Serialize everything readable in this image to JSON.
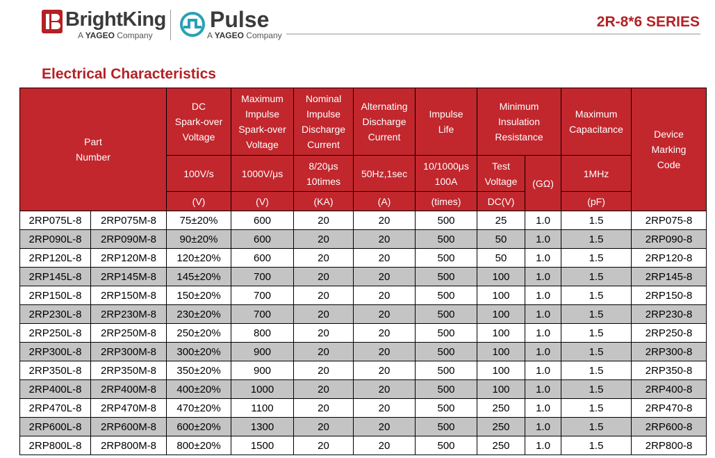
{
  "header": {
    "brightking": {
      "name": "BrightKing",
      "sub_prefix": "A",
      "sub_brand": "YAGEO",
      "sub_suffix": "Company"
    },
    "pulse": {
      "name": "Pulse",
      "sub_prefix": "A",
      "sub_brand": "YAGEO",
      "sub_suffix": "Company"
    },
    "series": "2R-8*6 SERIES"
  },
  "section_title": "Electrical Characteristics",
  "colors": {
    "brand_red": "#b52025",
    "header_red": "#c1272d",
    "row_shade": "#c4c4c4"
  },
  "table": {
    "headers": {
      "part_number": [
        "Part",
        "Number"
      ],
      "dc_sparkover": [
        "DC",
        "Spark-over",
        "Voltage"
      ],
      "max_impulse": [
        "Maximum",
        "Impulse",
        "Spark-over",
        "Voltage"
      ],
      "nominal_discharge": [
        "Nominal",
        "Impulse",
        "Discharge",
        "Current"
      ],
      "alt_discharge": [
        "Alternating",
        "Discharge",
        "Current"
      ],
      "impulse_life": [
        "Impulse",
        "Life"
      ],
      "min_insulation": [
        "Minimum",
        "Insulation",
        "Resistance"
      ],
      "max_capacitance": [
        "Maximum",
        "Capacitance"
      ],
      "marking": [
        "Device",
        "Marking",
        "Code"
      ]
    },
    "conditions": {
      "dc_sparkover": "100V/s",
      "max_impulse": "1000V/μs",
      "nominal_discharge": [
        "8/20μs",
        "10times"
      ],
      "alt_discharge": "50Hz,1sec",
      "impulse_life": [
        "10/1000μs",
        "100A"
      ],
      "test_voltage": [
        "Test",
        "Voltage"
      ],
      "gohm": "(GΩ)",
      "max_capacitance": "1MHz"
    },
    "units": {
      "dc_sparkover": "(V)",
      "max_impulse": "(V)",
      "nominal_discharge": "(KA)",
      "alt_discharge": "(A)",
      "impulse_life": "(times)",
      "test_voltage": "DC(V)",
      "max_capacitance": "(pF)"
    },
    "rows": [
      {
        "l": "2RP075L-8",
        "m": "2RP075M-8",
        "dc": "75±20%",
        "imp": "600",
        "nom": "20",
        "alt": "20",
        "life": "500",
        "tv": "25",
        "res": "1.0",
        "cap": "1.5",
        "code": "2RP075-8"
      },
      {
        "l": "2RP090L-8",
        "m": "2RP090M-8",
        "dc": "90±20%",
        "imp": "600",
        "nom": "20",
        "alt": "20",
        "life": "500",
        "tv": "50",
        "res": "1.0",
        "cap": "1.5",
        "code": "2RP090-8"
      },
      {
        "l": "2RP120L-8",
        "m": "2RP120M-8",
        "dc": "120±20%",
        "imp": "600",
        "nom": "20",
        "alt": "20",
        "life": "500",
        "tv": "50",
        "res": "1.0",
        "cap": "1.5",
        "code": "2RP120-8"
      },
      {
        "l": "2RP145L-8",
        "m": "2RP145M-8",
        "dc": "145±20%",
        "imp": "700",
        "nom": "20",
        "alt": "20",
        "life": "500",
        "tv": "100",
        "res": "1.0",
        "cap": "1.5",
        "code": "2RP145-8"
      },
      {
        "l": "2RP150L-8",
        "m": "2RP150M-8",
        "dc": "150±20%",
        "imp": "700",
        "nom": "20",
        "alt": "20",
        "life": "500",
        "tv": "100",
        "res": "1.0",
        "cap": "1.5",
        "code": "2RP150-8"
      },
      {
        "l": "2RP230L-8",
        "m": "2RP230M-8",
        "dc": "230±20%",
        "imp": "700",
        "nom": "20",
        "alt": "20",
        "life": "500",
        "tv": "100",
        "res": "1.0",
        "cap": "1.5",
        "code": "2RP230-8"
      },
      {
        "l": "2RP250L-8",
        "m": "2RP250M-8",
        "dc": "250±20%",
        "imp": "800",
        "nom": "20",
        "alt": "20",
        "life": "500",
        "tv": "100",
        "res": "1.0",
        "cap": "1.5",
        "code": "2RP250-8"
      },
      {
        "l": "2RP300L-8",
        "m": "2RP300M-8",
        "dc": "300±20%",
        "imp": "900",
        "nom": "20",
        "alt": "20",
        "life": "500",
        "tv": "100",
        "res": "1.0",
        "cap": "1.5",
        "code": "2RP300-8"
      },
      {
        "l": "2RP350L-8",
        "m": "2RP350M-8",
        "dc": "350±20%",
        "imp": "900",
        "nom": "20",
        "alt": "20",
        "life": "500",
        "tv": "100",
        "res": "1.0",
        "cap": "1.5",
        "code": "2RP350-8"
      },
      {
        "l": "2RP400L-8",
        "m": "2RP400M-8",
        "dc": "400±20%",
        "imp": "1000",
        "nom": "20",
        "alt": "20",
        "life": "500",
        "tv": "100",
        "res": "1.0",
        "cap": "1.5",
        "code": "2RP400-8"
      },
      {
        "l": "2RP470L-8",
        "m": "2RP470M-8",
        "dc": "470±20%",
        "imp": "1100",
        "nom": "20",
        "alt": "20",
        "life": "500",
        "tv": "250",
        "res": "1.0",
        "cap": "1.5",
        "code": "2RP470-8"
      },
      {
        "l": "2RP600L-8",
        "m": "2RP600M-8",
        "dc": "600±20%",
        "imp": "1300",
        "nom": "20",
        "alt": "20",
        "life": "500",
        "tv": "250",
        "res": "1.0",
        "cap": "1.5",
        "code": "2RP600-8"
      },
      {
        "l": "2RP800L-8",
        "m": "2RP800M-8",
        "dc": "800±20%",
        "imp": "1500",
        "nom": "20",
        "alt": "20",
        "life": "500",
        "tv": "250",
        "res": "1.0",
        "cap": "1.5",
        "code": "2RP800-8"
      }
    ]
  }
}
